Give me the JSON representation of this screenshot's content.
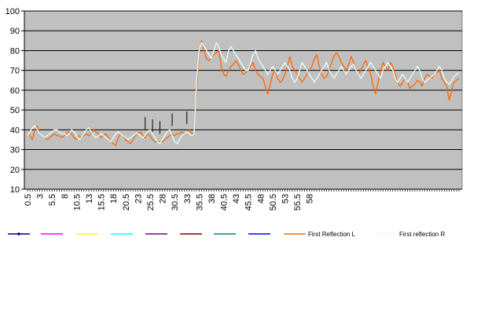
{
  "chart_data": {
    "type": "line",
    "title": "",
    "xlabel": "",
    "ylabel": "",
    "ylim": [
      10,
      100
    ],
    "yticks": [
      10,
      20,
      30,
      40,
      50,
      60,
      70,
      80,
      90,
      100
    ],
    "xticks": [
      "0.5",
      "3",
      "5.5",
      "8",
      "10.5",
      "13",
      "15.5",
      "18",
      "20.5",
      "23",
      "25.5",
      "28",
      "30.5",
      "33",
      "35.5",
      "38",
      "40.5",
      "43",
      "45.5",
      "48",
      "50.5",
      "53",
      "55.5",
      "58"
    ],
    "grid": "horizontal",
    "plot_background": "#c0c0c0",
    "legend_position": "bottom",
    "x_step": 0.5,
    "series": [
      {
        "name": "First Reflection L",
        "color": "#ff6600",
        "values": [
          38,
          37,
          35,
          40,
          42,
          38,
          37,
          36,
          35,
          36,
          37,
          38,
          37,
          37,
          36,
          37,
          38,
          39,
          38,
          36,
          35,
          37,
          36,
          37,
          38,
          37,
          38,
          40,
          39,
          38,
          36,
          37,
          38,
          36,
          34,
          33,
          32,
          36,
          38,
          37,
          35,
          34,
          33,
          35,
          37,
          38,
          39,
          37,
          36,
          38,
          37,
          35,
          34,
          34,
          34,
          34,
          35,
          36,
          37,
          38,
          37,
          38,
          38,
          39,
          38,
          39,
          40,
          38,
          38,
          60,
          78,
          85,
          80,
          76,
          75,
          76,
          78,
          79,
          80,
          72,
          68,
          67,
          70,
          72,
          73,
          75,
          73,
          70,
          68,
          69,
          70,
          72,
          74,
          70,
          68,
          67,
          66,
          62,
          58,
          63,
          68,
          70,
          66,
          64,
          65,
          68,
          72,
          77,
          72,
          70,
          68,
          66,
          64,
          66,
          68,
          70,
          72,
          76,
          78,
          72,
          68,
          66,
          67,
          70,
          74,
          77,
          79,
          77,
          74,
          72,
          70,
          73,
          77,
          74,
          70,
          68,
          70,
          73,
          75,
          71,
          68,
          62,
          58,
          64,
          70,
          74,
          72,
          70,
          74,
          72,
          68,
          64,
          62,
          64,
          66,
          64,
          61,
          62,
          63,
          65,
          64,
          62,
          66,
          68,
          67,
          66,
          68,
          69,
          70,
          66,
          64,
          62,
          55,
          60,
          64,
          65,
          66
        ],
        "tick_marks_at": [
          48,
          51,
          54,
          59,
          65
        ]
      },
      {
        "name": "First reflection R",
        "color": "#e6ffff",
        "values": [
          37,
          39,
          41,
          42,
          40,
          38,
          37,
          36,
          37,
          38,
          39,
          40,
          40,
          39,
          38,
          38,
          37,
          38,
          40,
          39,
          37,
          35,
          36,
          38,
          40,
          41,
          39,
          37,
          36,
          37,
          38,
          37,
          36,
          35,
          34,
          36,
          38,
          39,
          38,
          37,
          36,
          35,
          36,
          37,
          38,
          38,
          37,
          36,
          37,
          39,
          40,
          38,
          36,
          34,
          33,
          35,
          37,
          39,
          40,
          37,
          34,
          33,
          35,
          37,
          38,
          39,
          38,
          37,
          38,
          65,
          80,
          84,
          82,
          80,
          78,
          76,
          80,
          84,
          82,
          78,
          76,
          74,
          80,
          82,
          80,
          78,
          76,
          74,
          72,
          70,
          70,
          74,
          78,
          80,
          76,
          74,
          72,
          70,
          68,
          70,
          72,
          70,
          68,
          70,
          72,
          74,
          72,
          70,
          66,
          64,
          66,
          70,
          74,
          72,
          70,
          68,
          66,
          64,
          66,
          68,
          70,
          72,
          74,
          70,
          68,
          66,
          68,
          70,
          72,
          70,
          68,
          70,
          72,
          73,
          70,
          68,
          66,
          68,
          70,
          72,
          74,
          72,
          70,
          68,
          66,
          70,
          72,
          74,
          72,
          70,
          66,
          64,
          66,
          68,
          66,
          64,
          66,
          68,
          70,
          72,
          70,
          66,
          64,
          65,
          66,
          67,
          68,
          70,
          72,
          70,
          66,
          64,
          63,
          65,
          67,
          68,
          69
        ]
      },
      {
        "name": "",
        "color": "#000080",
        "values": []
      },
      {
        "name": "",
        "color": "#ff00ff",
        "values": []
      },
      {
        "name": "",
        "color": "#ffff00",
        "values": []
      },
      {
        "name": "",
        "color": "#00ffff",
        "values": []
      },
      {
        "name": "",
        "color": "#800080",
        "values": []
      },
      {
        "name": "",
        "color": "#800000",
        "values": []
      },
      {
        "name": "",
        "color": "#008080",
        "values": []
      },
      {
        "name": "",
        "color": "#0000ff",
        "values": []
      }
    ],
    "legend": [
      {
        "label": "",
        "color": "#000080",
        "marker": true
      },
      {
        "label": "",
        "color": "#ff00ff"
      },
      {
        "label": "",
        "color": "#ffff00"
      },
      {
        "label": "",
        "color": "#00ffff"
      },
      {
        "label": "",
        "color": "#800080"
      },
      {
        "label": "",
        "color": "#800000"
      },
      {
        "label": "",
        "color": "#008080"
      },
      {
        "label": "",
        "color": "#0000ff"
      },
      {
        "label": "First Reflection L",
        "color": "#ff6600"
      },
      {
        "label": "First reflection R",
        "color": "#e6ffff"
      }
    ]
  }
}
